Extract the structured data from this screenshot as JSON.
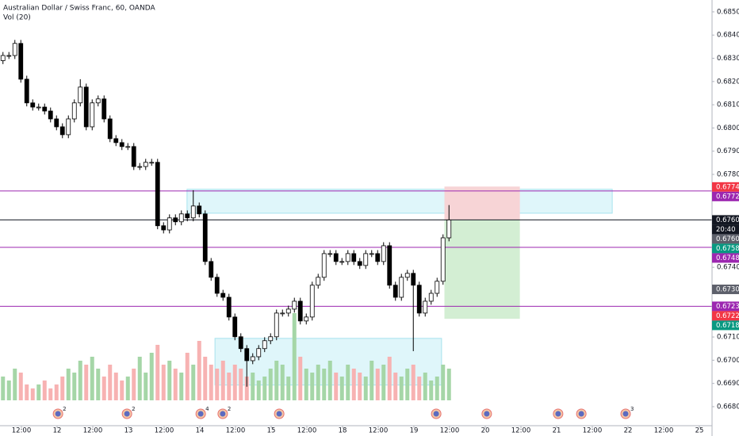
{
  "chart_data": {
    "type": "candlestick",
    "title": "Australian Dollar / Swiss Franc, 60, OANDA",
    "subtitle": "Vol (20)",
    "x": [
      1,
      3,
      5,
      7,
      9,
      11,
      13,
      15,
      17,
      19,
      21,
      23,
      25,
      27,
      29,
      31,
      33,
      35,
      37,
      39,
      41,
      43,
      45,
      47,
      49,
      51,
      53,
      55,
      57,
      59,
      61,
      63,
      65,
      67,
      69,
      71,
      73,
      75,
      77,
      79,
      81,
      83,
      85,
      87,
      89,
      91,
      93,
      95,
      97,
      99,
      101,
      103,
      105,
      107,
      109,
      111,
      113,
      115,
      117,
      119,
      121,
      123,
      125,
      127,
      129,
      131,
      133,
      135,
      137,
      139,
      141,
      143,
      145,
      147,
      149,
      151
    ],
    "open": [
      0.6829,
      0.68312,
      0.68312,
      0.68364,
      0.6821,
      0.68108,
      0.6809,
      0.6809,
      0.68073,
      0.68039,
      0.68005,
      0.67971,
      0.68039,
      0.68108,
      0.68176,
      0.68005,
      0.68108,
      0.68125,
      0.68039,
      0.67954,
      0.67937,
      0.6792,
      0.6792,
      0.67834,
      0.67834,
      0.67852,
      0.67852,
      0.67579,
      0.67561,
      0.67613,
      0.67596,
      0.6763,
      0.67613,
      0.67664,
      0.6763,
      0.67425,
      0.67357,
      0.67288,
      0.67271,
      0.67186,
      0.67101,
      0.6705,
      0.66998,
      0.67015,
      0.6705,
      0.67084,
      0.67101,
      0.67203,
      0.67203,
      0.6722,
      0.67254,
      0.67169,
      0.67186,
      0.67323,
      0.67357,
      0.67459,
      0.67459,
      0.67425,
      0.67425,
      0.67459,
      0.67425,
      0.67408,
      0.67459,
      0.67459,
      0.67425,
      0.67493,
      0.67323,
      0.67271,
      0.67357,
      0.67374,
      0.67323,
      0.67203,
      0.67254,
      0.67288,
      0.6734,
      0.67527
    ],
    "high": [
      0.68327,
      0.68327,
      0.68379,
      0.68379,
      0.68225,
      0.68123,
      0.68105,
      0.68105,
      0.68088,
      0.68054,
      0.6802,
      0.68054,
      0.68123,
      0.6821,
      0.68191,
      0.68123,
      0.6814,
      0.6814,
      0.68054,
      0.67969,
      0.67952,
      0.67935,
      0.67935,
      0.67849,
      0.67867,
      0.67867,
      0.67867,
      0.67594,
      0.67628,
      0.67628,
      0.67645,
      0.67645,
      0.67732,
      0.67679,
      0.67645,
      0.6744,
      0.67372,
      0.67303,
      0.67286,
      0.67201,
      0.67116,
      0.67065,
      0.6703,
      0.67065,
      0.67099,
      0.67116,
      0.67218,
      0.67218,
      0.67235,
      0.67269,
      0.67269,
      0.67201,
      0.67338,
      0.67372,
      0.67474,
      0.67474,
      0.67474,
      0.6744,
      0.67474,
      0.67474,
      0.6744,
      0.67474,
      0.67474,
      0.67474,
      0.67508,
      0.67508,
      0.67338,
      0.67372,
      0.67389,
      0.67389,
      0.67338,
      0.67269,
      0.67303,
      0.67355,
      0.67542,
      0.67668
    ],
    "low": [
      0.68275,
      0.68297,
      0.68297,
      0.68195,
      0.68093,
      0.68075,
      0.68075,
      0.68058,
      0.68024,
      0.6799,
      0.67956,
      0.67956,
      0.68024,
      0.68093,
      0.6799,
      0.6799,
      0.68093,
      0.68024,
      0.67939,
      0.67922,
      0.67905,
      0.67905,
      0.67819,
      0.67819,
      0.67819,
      0.67837,
      0.67564,
      0.67546,
      0.67546,
      0.67581,
      0.67581,
      0.67598,
      0.67598,
      0.67615,
      0.6741,
      0.67342,
      0.67273,
      0.67256,
      0.67171,
      0.67086,
      0.67035,
      0.66886,
      0.66983,
      0.67,
      0.67035,
      0.67069,
      0.67086,
      0.67188,
      0.67188,
      0.67205,
      0.67154,
      0.67154,
      0.67171,
      0.67308,
      0.67342,
      0.67444,
      0.6741,
      0.6741,
      0.6741,
      0.6741,
      0.67393,
      0.67393,
      0.67444,
      0.6741,
      0.6741,
      0.67308,
      0.67256,
      0.67256,
      0.67342,
      0.67039,
      0.67188,
      0.67188,
      0.67239,
      0.67273,
      0.67325,
      0.67512
    ],
    "close": [
      0.68312,
      0.68312,
      0.68364,
      0.6821,
      0.68108,
      0.6809,
      0.6809,
      0.68073,
      0.68039,
      0.68005,
      0.67971,
      0.68039,
      0.68108,
      0.68176,
      0.68005,
      0.68108,
      0.68125,
      0.68039,
      0.67954,
      0.67937,
      0.6792,
      0.6792,
      0.67834,
      0.67834,
      0.67852,
      0.67852,
      0.67579,
      0.67561,
      0.67613,
      0.67596,
      0.6763,
      0.67613,
      0.67664,
      0.6763,
      0.67425,
      0.67357,
      0.67288,
      0.67271,
      0.67186,
      0.67101,
      0.6705,
      0.66998,
      0.67015,
      0.6705,
      0.67084,
      0.67101,
      0.67203,
      0.67203,
      0.6722,
      0.67254,
      0.67169,
      0.67186,
      0.67323,
      0.67357,
      0.67459,
      0.67459,
      0.67425,
      0.67425,
      0.67459,
      0.67425,
      0.67408,
      0.67459,
      0.67459,
      0.67425,
      0.67493,
      0.67323,
      0.67271,
      0.67357,
      0.67374,
      0.67323,
      0.67203,
      0.67254,
      0.67288,
      0.6734,
      0.67527,
      0.67604
    ],
    "volume": [
      30,
      25,
      40,
      35,
      20,
      15,
      20,
      25,
      15,
      20,
      30,
      40,
      35,
      50,
      45,
      55,
      40,
      30,
      45,
      35,
      25,
      30,
      40,
      55,
      35,
      60,
      70,
      45,
      50,
      40,
      35,
      60,
      45,
      75,
      55,
      45,
      40,
      50,
      35,
      45,
      40,
      30,
      35,
      25,
      30,
      40,
      50,
      45,
      30,
      110,
      55,
      40,
      35,
      45,
      40,
      50,
      35,
      30,
      45,
      40,
      35,
      30,
      50,
      40,
      45,
      55,
      35,
      30,
      40,
      45,
      30,
      35,
      25,
      30,
      45,
      40
    ],
    "up_color": "#ffffff",
    "down_color": "#000000",
    "wick_color": "#000000",
    "volume_up_color": "#a5d6a7",
    "volume_down_color": "#f7b2b2",
    "xlim": [
      0,
      240
    ],
    "ylim": [
      0.66718,
      0.68551
    ],
    "grid": false,
    "xticks": [
      {
        "value": 7.2,
        "label": "12:00"
      },
      {
        "value": 19.2,
        "label": "12"
      },
      {
        "value": 31.2,
        "label": "12:00"
      },
      {
        "value": 43.2,
        "label": "13"
      },
      {
        "value": 55.2,
        "label": "12:00"
      },
      {
        "value": 67.2,
        "label": "14"
      },
      {
        "value": 79.2,
        "label": "12:00"
      },
      {
        "value": 91.2,
        "label": "15"
      },
      {
        "value": 103.2,
        "label": "12:00"
      },
      {
        "value": 115.2,
        "label": "18"
      },
      {
        "value": 127.2,
        "label": "12:00"
      },
      {
        "value": 139.2,
        "label": "19"
      },
      {
        "value": 151.2,
        "label": "12:00"
      },
      {
        "value": 163.2,
        "label": "20"
      },
      {
        "value": 175.2,
        "label": "12:00"
      },
      {
        "value": 187.2,
        "label": "21"
      },
      {
        "value": 199.2,
        "label": "12:00"
      },
      {
        "value": 211.2,
        "label": "22"
      },
      {
        "value": 223.2,
        "label": "12:00"
      },
      {
        "value": 235.2,
        "label": "25"
      }
    ],
    "yticks": [
      {
        "value": 0.685,
        "label": "0.68500"
      },
      {
        "value": 0.684,
        "label": "0.68400"
      },
      {
        "value": 0.683,
        "label": "0.68300"
      },
      {
        "value": 0.682,
        "label": "0.68200"
      },
      {
        "value": 0.681,
        "label": "0.68100"
      },
      {
        "value": 0.68,
        "label": "0.68000"
      },
      {
        "value": 0.679,
        "label": "0.67900"
      },
      {
        "value": 0.678,
        "label": "0.67800"
      },
      {
        "value": 0.674,
        "label": "0.67400"
      },
      {
        "value": 0.671,
        "label": "0.67100"
      },
      {
        "value": 0.67,
        "label": "0.67000"
      },
      {
        "value": 0.669,
        "label": "0.66900"
      },
      {
        "value": 0.668,
        "label": "0.66800"
      }
    ],
    "price_tags": [
      {
        "value": 0.67746,
        "label": "0.67746",
        "color": "#f23645"
      },
      {
        "value": 0.67729,
        "label": "0.67729",
        "color": "#9c27b0"
      },
      {
        "value": 0.67604,
        "label": "0.67604",
        "color": "#131722",
        "current": true
      },
      {
        "value": 0.67602,
        "label": "0.67602",
        "color": "#5d606b"
      },
      {
        "value": 0.67581,
        "label": "0.67581",
        "color": "#089981"
      },
      {
        "value": 0.67486,
        "label": "0.67486",
        "color": "#9c27b0"
      },
      {
        "value": 0.67305,
        "label": "0.67305",
        "color": "#5d606b"
      },
      {
        "value": 0.67232,
        "label": "0.67232",
        "color": "#9c27b0"
      },
      {
        "value": 0.67221,
        "label": "0.67221",
        "color": "#f23645"
      },
      {
        "value": 0.6718,
        "label": "0.67180",
        "color": "#089981"
      }
    ],
    "countdown": "20:40",
    "lines": [
      {
        "value": 0.67729,
        "color": "#9c27b0"
      },
      {
        "value": 0.67604,
        "color": "#131722"
      },
      {
        "value": 0.67486,
        "color": "#9c27b0"
      },
      {
        "value": 0.67232,
        "color": "#9c27b0"
      }
    ],
    "boxes": [
      {
        "x": [
          62.9,
          205.9
        ],
        "y": [
          0.67633,
          0.67736
        ],
        "color": "#dff6fa",
        "border": "#a6e3ee"
      },
      {
        "x": [
          72.3,
          148.5
        ],
        "y": [
          0.66893,
          0.67094
        ],
        "color": "#dff6fa",
        "border": "#a6e3ee"
      },
      {
        "x": [
          149.6,
          174.7
        ],
        "y": [
          0.67604,
          0.67746
        ],
        "color": "#f7d4d6",
        "border": "#f7d4d6"
      },
      {
        "x": [
          149.6,
          174.7
        ],
        "y": [
          0.6718,
          0.67604
        ],
        "color": "#d3eed3",
        "border": "#d3eed3"
      }
    ],
    "events": [
      {
        "x": 19.5,
        "count": "2"
      },
      {
        "x": 42.7,
        "count": "2"
      },
      {
        "x": 67.5,
        "count": "4"
      },
      {
        "x": 74.9,
        "count": "2"
      },
      {
        "x": 93.9
      },
      {
        "x": 146.7
      },
      {
        "x": 163.7
      },
      {
        "x": 187.7
      },
      {
        "x": 195.5
      },
      {
        "x": 210.4,
        "count": "3"
      }
    ]
  }
}
